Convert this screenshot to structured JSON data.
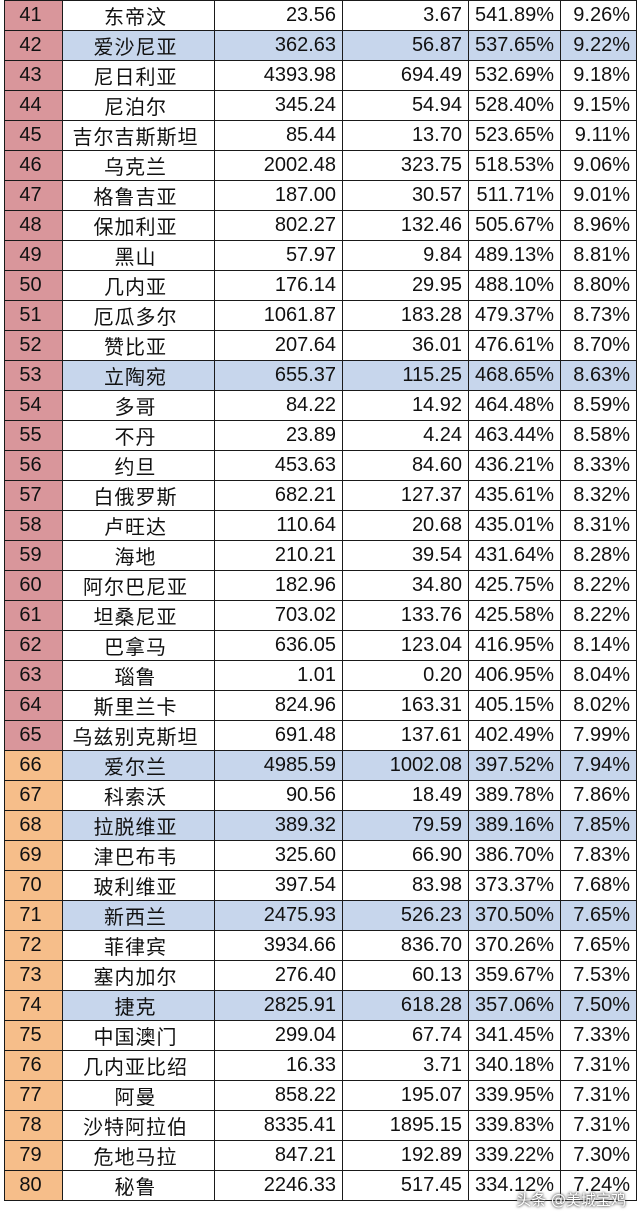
{
  "table": {
    "rows": [
      {
        "rank": "41",
        "name": "东帝汶",
        "v1": "23.56",
        "v2": "3.67",
        "pct": "541.89%",
        "rate": "9.26%",
        "tier": "red",
        "hl": false
      },
      {
        "rank": "42",
        "name": "爱沙尼亚",
        "v1": "362.63",
        "v2": "56.87",
        "pct": "537.65%",
        "rate": "9.22%",
        "tier": "red",
        "hl": true
      },
      {
        "rank": "43",
        "name": "尼日利亚",
        "v1": "4393.98",
        "v2": "694.49",
        "pct": "532.69%",
        "rate": "9.18%",
        "tier": "red",
        "hl": false
      },
      {
        "rank": "44",
        "name": "尼泊尔",
        "v1": "345.24",
        "v2": "54.94",
        "pct": "528.40%",
        "rate": "9.15%",
        "tier": "red",
        "hl": false
      },
      {
        "rank": "45",
        "name": "吉尔吉斯斯坦",
        "v1": "85.44",
        "v2": "13.70",
        "pct": "523.65%",
        "rate": "9.11%",
        "tier": "red",
        "hl": false
      },
      {
        "rank": "46",
        "name": "乌克兰",
        "v1": "2002.48",
        "v2": "323.75",
        "pct": "518.53%",
        "rate": "9.06%",
        "tier": "red",
        "hl": false
      },
      {
        "rank": "47",
        "name": "格鲁吉亚",
        "v1": "187.00",
        "v2": "30.57",
        "pct": "511.71%",
        "rate": "9.01%",
        "tier": "red",
        "hl": false
      },
      {
        "rank": "48",
        "name": "保加利亚",
        "v1": "802.27",
        "v2": "132.46",
        "pct": "505.67%",
        "rate": "8.96%",
        "tier": "red",
        "hl": false
      },
      {
        "rank": "49",
        "name": "黑山",
        "v1": "57.97",
        "v2": "9.84",
        "pct": "489.13%",
        "rate": "8.81%",
        "tier": "red",
        "hl": false
      },
      {
        "rank": "50",
        "name": "几内亚",
        "v1": "176.14",
        "v2": "29.95",
        "pct": "488.10%",
        "rate": "8.80%",
        "tier": "red",
        "hl": false
      },
      {
        "rank": "51",
        "name": "厄瓜多尔",
        "v1": "1061.87",
        "v2": "183.28",
        "pct": "479.37%",
        "rate": "8.73%",
        "tier": "red",
        "hl": false
      },
      {
        "rank": "52",
        "name": "赞比亚",
        "v1": "207.64",
        "v2": "36.01",
        "pct": "476.61%",
        "rate": "8.70%",
        "tier": "red",
        "hl": false
      },
      {
        "rank": "53",
        "name": "立陶宛",
        "v1": "655.37",
        "v2": "115.25",
        "pct": "468.65%",
        "rate": "8.63%",
        "tier": "red",
        "hl": true
      },
      {
        "rank": "54",
        "name": "多哥",
        "v1": "84.22",
        "v2": "14.92",
        "pct": "464.48%",
        "rate": "8.59%",
        "tier": "red",
        "hl": false
      },
      {
        "rank": "55",
        "name": "不丹",
        "v1": "23.89",
        "v2": "4.24",
        "pct": "463.44%",
        "rate": "8.58%",
        "tier": "red",
        "hl": false
      },
      {
        "rank": "56",
        "name": "约旦",
        "v1": "453.63",
        "v2": "84.60",
        "pct": "436.21%",
        "rate": "8.33%",
        "tier": "red",
        "hl": false
      },
      {
        "rank": "57",
        "name": "白俄罗斯",
        "v1": "682.21",
        "v2": "127.37",
        "pct": "435.61%",
        "rate": "8.32%",
        "tier": "red",
        "hl": false
      },
      {
        "rank": "58",
        "name": "卢旺达",
        "v1": "110.64",
        "v2": "20.68",
        "pct": "435.01%",
        "rate": "8.31%",
        "tier": "red",
        "hl": false
      },
      {
        "rank": "59",
        "name": "海地",
        "v1": "210.21",
        "v2": "39.54",
        "pct": "431.64%",
        "rate": "8.28%",
        "tier": "red",
        "hl": false
      },
      {
        "rank": "60",
        "name": "阿尔巴尼亚",
        "v1": "182.96",
        "v2": "34.80",
        "pct": "425.75%",
        "rate": "8.22%",
        "tier": "red",
        "hl": false
      },
      {
        "rank": "61",
        "name": "坦桑尼亚",
        "v1": "703.02",
        "v2": "133.76",
        "pct": "425.58%",
        "rate": "8.22%",
        "tier": "red",
        "hl": false
      },
      {
        "rank": "62",
        "name": "巴拿马",
        "v1": "636.05",
        "v2": "123.04",
        "pct": "416.95%",
        "rate": "8.14%",
        "tier": "red",
        "hl": false
      },
      {
        "rank": "63",
        "name": "瑙鲁",
        "v1": "1.01",
        "v2": "0.20",
        "pct": "406.95%",
        "rate": "8.04%",
        "tier": "red",
        "hl": false
      },
      {
        "rank": "64",
        "name": "斯里兰卡",
        "v1": "824.96",
        "v2": "163.31",
        "pct": "405.15%",
        "rate": "8.02%",
        "tier": "red",
        "hl": false
      },
      {
        "rank": "65",
        "name": "乌兹别克斯坦",
        "v1": "691.48",
        "v2": "137.61",
        "pct": "402.49%",
        "rate": "7.99%",
        "tier": "red",
        "hl": false
      },
      {
        "rank": "66",
        "name": "爱尔兰",
        "v1": "4985.59",
        "v2": "1002.08",
        "pct": "397.52%",
        "rate": "7.94%",
        "tier": "orange",
        "hl": true
      },
      {
        "rank": "67",
        "name": "科索沃",
        "v1": "90.56",
        "v2": "18.49",
        "pct": "389.78%",
        "rate": "7.86%",
        "tier": "orange",
        "hl": false
      },
      {
        "rank": "68",
        "name": "拉脱维亚",
        "v1": "389.32",
        "v2": "79.59",
        "pct": "389.16%",
        "rate": "7.85%",
        "tier": "orange",
        "hl": true
      },
      {
        "rank": "69",
        "name": "津巴布韦",
        "v1": "325.60",
        "v2": "66.90",
        "pct": "386.70%",
        "rate": "7.83%",
        "tier": "orange",
        "hl": false
      },
      {
        "rank": "70",
        "name": "玻利维亚",
        "v1": "397.54",
        "v2": "83.98",
        "pct": "373.37%",
        "rate": "7.68%",
        "tier": "orange",
        "hl": false
      },
      {
        "rank": "71",
        "name": "新西兰",
        "v1": "2475.93",
        "v2": "526.23",
        "pct": "370.50%",
        "rate": "7.65%",
        "tier": "orange",
        "hl": true
      },
      {
        "rank": "72",
        "name": "菲律宾",
        "v1": "3934.66",
        "v2": "836.70",
        "pct": "370.26%",
        "rate": "7.65%",
        "tier": "orange",
        "hl": false
      },
      {
        "rank": "73",
        "name": "塞内加尔",
        "v1": "276.40",
        "v2": "60.13",
        "pct": "359.67%",
        "rate": "7.53%",
        "tier": "orange",
        "hl": false
      },
      {
        "rank": "74",
        "name": "捷克",
        "v1": "2825.91",
        "v2": "618.28",
        "pct": "357.06%",
        "rate": "7.50%",
        "tier": "orange",
        "hl": true
      },
      {
        "rank": "75",
        "name": "中国澳门",
        "v1": "299.04",
        "v2": "67.74",
        "pct": "341.45%",
        "rate": "7.33%",
        "tier": "orange",
        "hl": false
      },
      {
        "rank": "76",
        "name": "几内亚比绍",
        "v1": "16.33",
        "v2": "3.71",
        "pct": "340.18%",
        "rate": "7.31%",
        "tier": "orange",
        "hl": false
      },
      {
        "rank": "77",
        "name": "阿曼",
        "v1": "858.22",
        "v2": "195.07",
        "pct": "339.95%",
        "rate": "7.31%",
        "tier": "orange",
        "hl": false
      },
      {
        "rank": "78",
        "name": "沙特阿拉伯",
        "v1": "8335.41",
        "v2": "1895.15",
        "pct": "339.83%",
        "rate": "7.31%",
        "tier": "orange",
        "hl": false
      },
      {
        "rank": "79",
        "name": "危地马拉",
        "v1": "847.21",
        "v2": "192.89",
        "pct": "339.22%",
        "rate": "7.30%",
        "tier": "orange",
        "hl": false
      },
      {
        "rank": "80",
        "name": "秘鲁",
        "v1": "2246.33",
        "v2": "517.45",
        "pct": "334.12%",
        "rate": "7.24%",
        "tier": "orange",
        "hl": false
      }
    ]
  },
  "colors": {
    "tier_red": "#d9969b",
    "tier_orange": "#f6be8a",
    "highlight_blue": "#c7d6ec"
  },
  "watermark": {
    "text": "头条 @美城宝鸡"
  }
}
